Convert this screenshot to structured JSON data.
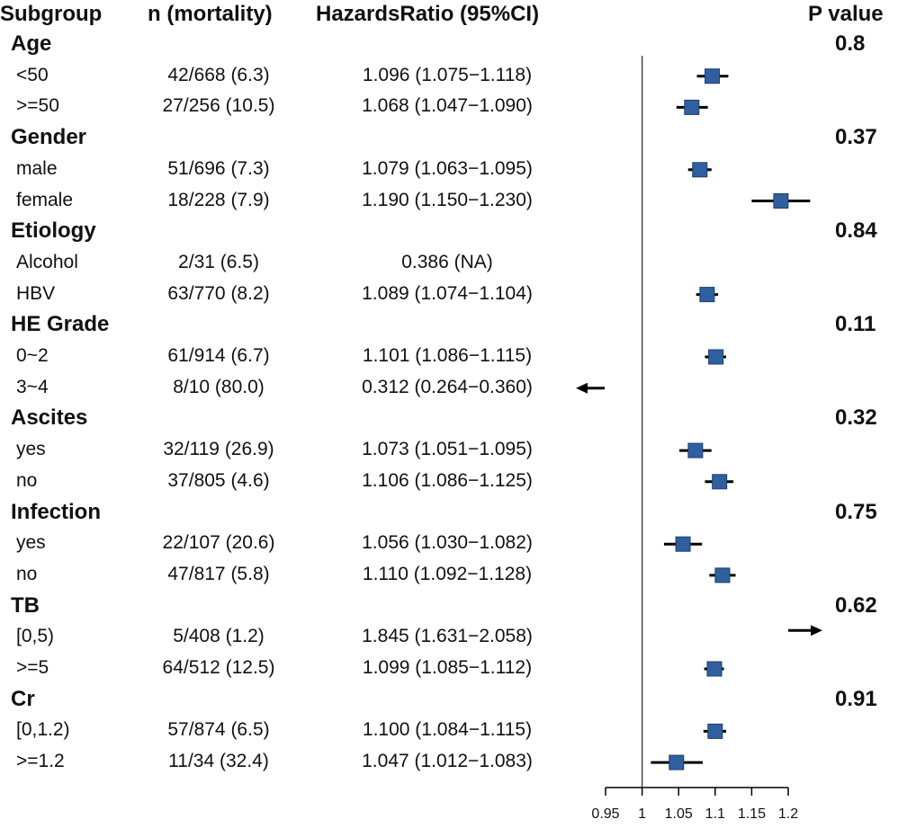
{
  "headers": {
    "subgroup": "Subgroup",
    "n": "n (mortality)",
    "hr": "HazardsRatio (95%CI)",
    "p": "P value"
  },
  "groups": [
    {
      "name": "Age",
      "p": "0.8",
      "rows": [
        {
          "label": "<50",
          "n": "42/668 (6.3)",
          "hr_text": "1.096 (1.075−1.118)",
          "hr": 1.096,
          "lo": 1.075,
          "hi": 1.118
        },
        {
          "label": ">=50",
          "n": "27/256 (10.5)",
          "hr_text": "1.068 (1.047−1.090)",
          "hr": 1.068,
          "lo": 1.047,
          "hi": 1.09
        }
      ]
    },
    {
      "name": "Gender",
      "p": "0.37",
      "rows": [
        {
          "label": "male",
          "n": "51/696 (7.3)",
          "hr_text": "1.079 (1.063−1.095)",
          "hr": 1.079,
          "lo": 1.063,
          "hi": 1.095
        },
        {
          "label": "female",
          "n": "18/228 (7.9)",
          "hr_text": "1.190 (1.150−1.230)",
          "hr": 1.19,
          "lo": 1.15,
          "hi": 1.23
        }
      ]
    },
    {
      "name": "Etiology",
      "p": "0.84",
      "rows": [
        {
          "label": "Alcohol",
          "n": "2/31 (6.5)",
          "hr_text": "0.386 (NA)",
          "hr": 0.386,
          "lo": null,
          "hi": null,
          "offscale": "none"
        },
        {
          "label": "HBV",
          "n": "63/770 (8.2)",
          "hr_text": "1.089 (1.074−1.104)",
          "hr": 1.089,
          "lo": 1.074,
          "hi": 1.104
        }
      ]
    },
    {
      "name": "HE Grade",
      "p": "0.11",
      "rows": [
        {
          "label": "0~2",
          "n": "61/914 (6.7)",
          "hr_text": "1.101 (1.086−1.115)",
          "hr": 1.101,
          "lo": 1.086,
          "hi": 1.115
        },
        {
          "label": "3~4",
          "n": "8/10 (80.0)",
          "hr_text": "0.312 (0.264−0.360)",
          "hr": 0.312,
          "lo": 0.264,
          "hi": 0.36,
          "offscale": "left"
        }
      ]
    },
    {
      "name": "Ascites",
      "p": "0.32",
      "rows": [
        {
          "label": "yes",
          "n": "32/119 (26.9)",
          "hr_text": "1.073 (1.051−1.095)",
          "hr": 1.073,
          "lo": 1.051,
          "hi": 1.095
        },
        {
          "label": "no",
          "n": "37/805 (4.6)",
          "hr_text": "1.106 (1.086−1.125)",
          "hr": 1.106,
          "lo": 1.086,
          "hi": 1.125
        }
      ]
    },
    {
      "name": "Infection",
      "p": "0.75",
      "rows": [
        {
          "label": "yes",
          "n": "22/107 (20.6)",
          "hr_text": "1.056 (1.030−1.082)",
          "hr": 1.056,
          "lo": 1.03,
          "hi": 1.082
        },
        {
          "label": "no",
          "n": "47/817 (5.8)",
          "hr_text": "1.110 (1.092−1.128)",
          "hr": 1.11,
          "lo": 1.092,
          "hi": 1.128
        }
      ]
    },
    {
      "name": "TB",
      "p": "0.62",
      "rows": [
        {
          "label": "[0,5)",
          "n": "5/408 (1.2)",
          "hr_text": "1.845 (1.631−2.058)",
          "hr": 1.845,
          "lo": 1.631,
          "hi": 2.058,
          "offscale": "right"
        },
        {
          "label": ">=5",
          "n": "64/512 (12.5)",
          "hr_text": "1.099 (1.085−1.112)",
          "hr": 1.099,
          "lo": 1.085,
          "hi": 1.112
        }
      ]
    },
    {
      "name": "Cr",
      "p": "0.91",
      "rows": [
        {
          "label": "[0,1.2)",
          "n": "57/874 (6.5)",
          "hr_text": "1.100 (1.084−1.115)",
          "hr": 1.1,
          "lo": 1.084,
          "hi": 1.115
        },
        {
          "label": ">=1.2",
          "n": "11/34 (32.4)",
          "hr_text": "1.047 (1.012−1.083)",
          "hr": 1.047,
          "lo": 1.012,
          "hi": 1.083
        }
      ]
    }
  ],
  "chart_data": {
    "type": "forest",
    "title": "",
    "xlabel": "",
    "xlim": [
      0.95,
      1.2
    ],
    "xticks": [
      0.95,
      1,
      1.05,
      1.1,
      1.15,
      1.2
    ],
    "xtick_labels": [
      "0.95",
      "1",
      "1.05",
      "1.1",
      "1.15",
      "1.2"
    ],
    "reference_line": 1,
    "marker_color": "#2f5f9e",
    "marker_edge": "#1d3f6e",
    "line_color": "#000000"
  }
}
